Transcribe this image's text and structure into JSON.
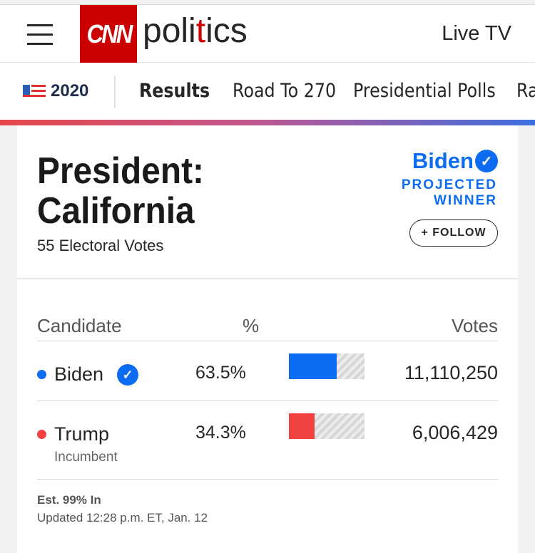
{
  "header": {
    "logo_text": "CNN",
    "brand_prefix": "poli",
    "brand_accent": "t",
    "brand_suffix": "ics",
    "live_tv": "Live TV"
  },
  "subnav": {
    "year": "2020",
    "items": [
      "Results",
      "Road To 270",
      "Presidential Polls",
      "Ra"
    ]
  },
  "race": {
    "title_line1": "President:",
    "title_line2": "California",
    "electoral_votes": "55 Electoral Votes",
    "winner_name": "Biden",
    "projected_line1": "PROJECTED",
    "projected_line2": "WINNER",
    "follow_label": "+ FOLLOW"
  },
  "table": {
    "col_candidate": "Candidate",
    "col_pct": "%",
    "col_votes": "Votes",
    "rows": [
      {
        "name": "Biden",
        "pct": "63.5%",
        "pct_value": 63.5,
        "votes": "11,110,250",
        "color": "#0c6cf2",
        "winner": true,
        "note": ""
      },
      {
        "name": "Trump",
        "pct": "34.3%",
        "pct_value": 34.3,
        "votes": "6,006,429",
        "color": "#f24141",
        "winner": false,
        "note": "Incumbent"
      }
    ]
  },
  "footer": {
    "est": "Est. 99% In",
    "updated": "Updated 12:28 p.m. ET, Jan. 12"
  },
  "icons": {
    "menu": "hamburger-icon",
    "flag": "us-flag-icon",
    "check": "checkmark-icon"
  },
  "colors": {
    "cnn_red": "#cc0000",
    "dem_blue": "#0c6cf2",
    "rep_red": "#f24141"
  }
}
